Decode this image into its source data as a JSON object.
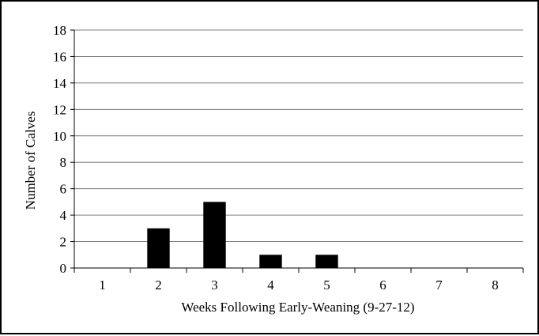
{
  "chart_data": {
    "type": "bar",
    "categories": [
      "1",
      "2",
      "3",
      "4",
      "5",
      "6",
      "7",
      "8"
    ],
    "values": [
      0,
      3,
      5,
      1,
      1,
      0,
      0,
      0
    ],
    "title": "",
    "xlabel": "Weeks Following Early-Weaning (9-27-12)",
    "ylabel": "Number of Calves",
    "ylim": [
      0,
      18
    ],
    "yticks": [
      0,
      2,
      4,
      6,
      8,
      10,
      12,
      14,
      16,
      18
    ],
    "grid": "horizontal",
    "legend": "none",
    "bar_color": "#000000",
    "grid_color": "#7f7f7f"
  }
}
